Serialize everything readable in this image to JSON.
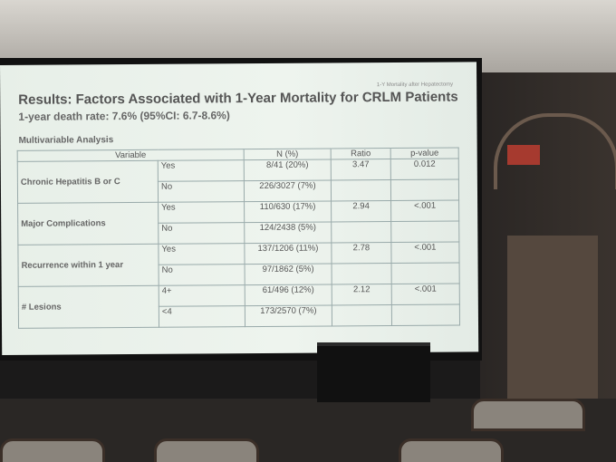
{
  "header": {
    "corner_note": "1-Y Mortality after Hepatectomy",
    "title": "Results: Factors Associated with 1-Year Mortality for CRLM Patients",
    "subtitle": "1-year death rate: 7.6% (95%CI: 6.7-8.6%)"
  },
  "section_label": "Multivariable Analysis",
  "table": {
    "columns": [
      "Variable",
      "N (%)",
      "Ratio",
      "p-value"
    ],
    "groups": [
      {
        "variable": "Chronic Hepatitis B or C",
        "rows": [
          {
            "level": "Yes",
            "n": "8/41 (20%)"
          },
          {
            "level": "No",
            "n": "226/3027 (7%)"
          }
        ],
        "ratio": "3.47",
        "p_value": "0.012"
      },
      {
        "variable": "Major Complications",
        "rows": [
          {
            "level": "Yes",
            "n": "110/630 (17%)"
          },
          {
            "level": "No",
            "n": "124/2438 (5%)"
          }
        ],
        "ratio": "2.94",
        "p_value": "<.001"
      },
      {
        "variable": "Recurrence within 1 year",
        "rows": [
          {
            "level": "Yes",
            "n": "137/1206 (11%)"
          },
          {
            "level": "No",
            "n": "97/1862 (5%)"
          }
        ],
        "ratio": "2.78",
        "p_value": "<.001"
      },
      {
        "variable": "# Lesions",
        "rows": [
          {
            "level": "4+",
            "n": "61/496 (12%)"
          },
          {
            "level": "<4",
            "n": "173/2570 (7%)"
          }
        ],
        "ratio": "2.12",
        "p_value": "<.001"
      }
    ]
  }
}
